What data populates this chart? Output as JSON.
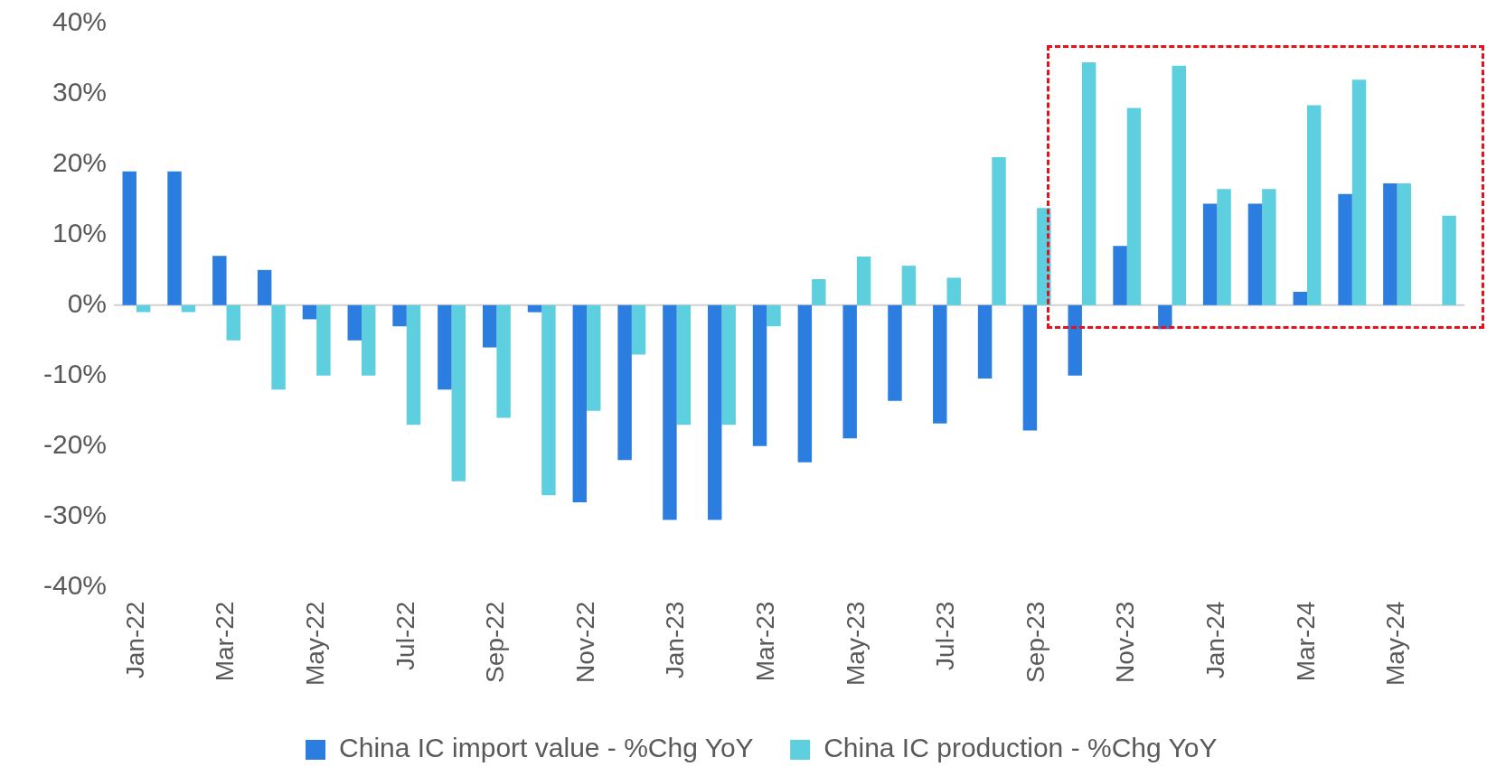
{
  "chart_data": {
    "type": "bar",
    "categories": [
      "Jan-22",
      null,
      "Mar-22",
      null,
      "May-22",
      null,
      "Jul-22",
      null,
      "Sep-22",
      null,
      "Nov-22",
      null,
      "Jan-23",
      null,
      "Mar-23",
      null,
      "May-23",
      null,
      "Jul-23",
      null,
      "Sep-23",
      null,
      "Nov-23",
      null,
      "Jan-24",
      null,
      "Mar-24",
      null,
      "May-24",
      null
    ],
    "series": [
      {
        "name": "China IC import value - %Chg YoY",
        "color": "#2b7de0",
        "values": [
          19,
          19,
          7,
          5,
          -2,
          -5,
          -3,
          -12,
          -6,
          -1,
          -28,
          -22,
          -30.5,
          -30.5,
          -20,
          -22.3,
          -18.9,
          -13.6,
          -16.8,
          -10.4,
          -17.8,
          -10,
          8.4,
          -3.4,
          14.4,
          14.4,
          1.9,
          15.8,
          17.3,
          null
        ]
      },
      {
        "name": "China IC production - %Chg YoY",
        "color": "#5dcfdf",
        "values": [
          -1,
          -1,
          -5,
          -12,
          -10,
          -10,
          -17,
          -25,
          -16,
          -27,
          -15,
          -7,
          -17,
          -17,
          -3,
          3.7,
          6.9,
          5.6,
          3.9,
          21,
          13.8,
          34.5,
          28,
          34,
          16.5,
          16.5,
          28.4,
          32,
          17.3,
          12.7
        ]
      }
    ],
    "ylim": [
      -40,
      40
    ],
    "yticks": [
      {
        "value": -40,
        "label": "-40%"
      },
      {
        "value": -30,
        "label": "-30%"
      },
      {
        "value": -20,
        "label": "-20%"
      },
      {
        "value": -10,
        "label": "-10%"
      },
      {
        "value": 0,
        "label": "0%"
      },
      {
        "value": 10,
        "label": "10%"
      },
      {
        "value": 20,
        "label": "20%"
      },
      {
        "value": 30,
        "label": "30%"
      },
      {
        "value": 40,
        "label": "40%"
      }
    ],
    "ref_lines": [
      {
        "axis": "y",
        "value": 0,
        "color": "#d0d0d0"
      }
    ],
    "grid": false,
    "legend": "bottom"
  }
}
